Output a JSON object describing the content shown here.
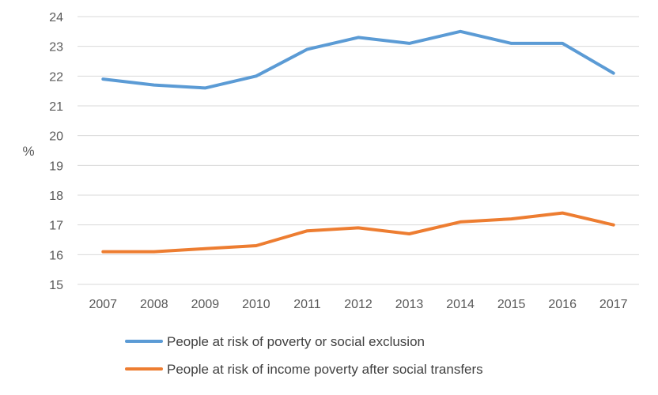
{
  "chart_data": {
    "type": "line",
    "title": "",
    "xlabel": "",
    "ylabel": "%",
    "ylim": [
      15,
      24
    ],
    "yticks": [
      15,
      16,
      17,
      18,
      19,
      20,
      21,
      22,
      23,
      24
    ],
    "grid": true,
    "legend_position": "bottom",
    "categories": [
      "2007",
      "2008",
      "2009",
      "2010",
      "2011",
      "2012",
      "2013",
      "2014",
      "2015",
      "2016",
      "2017"
    ],
    "series": [
      {
        "name": "People at risk of poverty or social exclusion",
        "color": "#5b9bd5",
        "values": [
          21.9,
          21.7,
          21.6,
          22.0,
          22.9,
          23.3,
          23.1,
          23.5,
          23.1,
          23.1,
          22.1
        ]
      },
      {
        "name": "People at risk of income poverty after social transfers",
        "color": "#ed7d31",
        "values": [
          16.1,
          16.1,
          16.2,
          16.3,
          16.8,
          16.9,
          16.7,
          17.1,
          17.2,
          17.4,
          17.0
        ]
      }
    ]
  }
}
